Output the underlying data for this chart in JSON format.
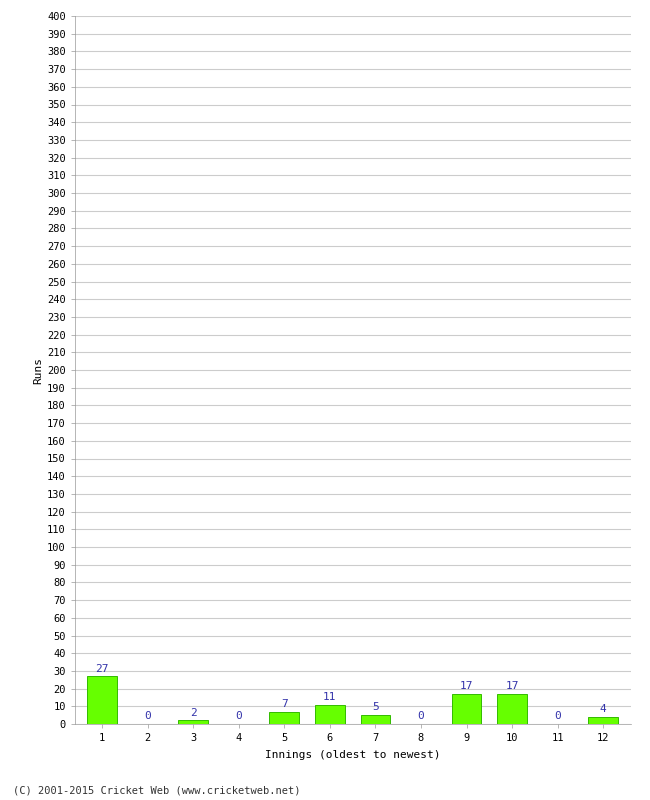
{
  "xlabel": "Innings (oldest to newest)",
  "ylabel": "Runs",
  "categories": [
    "1",
    "2",
    "3",
    "4",
    "5",
    "6",
    "7",
    "8",
    "9",
    "10",
    "11",
    "12"
  ],
  "values": [
    27,
    0,
    2,
    0,
    7,
    11,
    5,
    0,
    17,
    17,
    0,
    4
  ],
  "bar_color": "#66ff00",
  "bar_edge_color": "#33bb00",
  "label_color": "#3333aa",
  "ytick_step": 10,
  "ymin": 0,
  "ymax": 400,
  "background_color": "#ffffff",
  "grid_color": "#cccccc",
  "footer": "(C) 2001-2015 Cricket Web (www.cricketweb.net)",
  "tick_fontsize": 7.5,
  "label_fontsize": 8,
  "footer_fontsize": 7.5
}
